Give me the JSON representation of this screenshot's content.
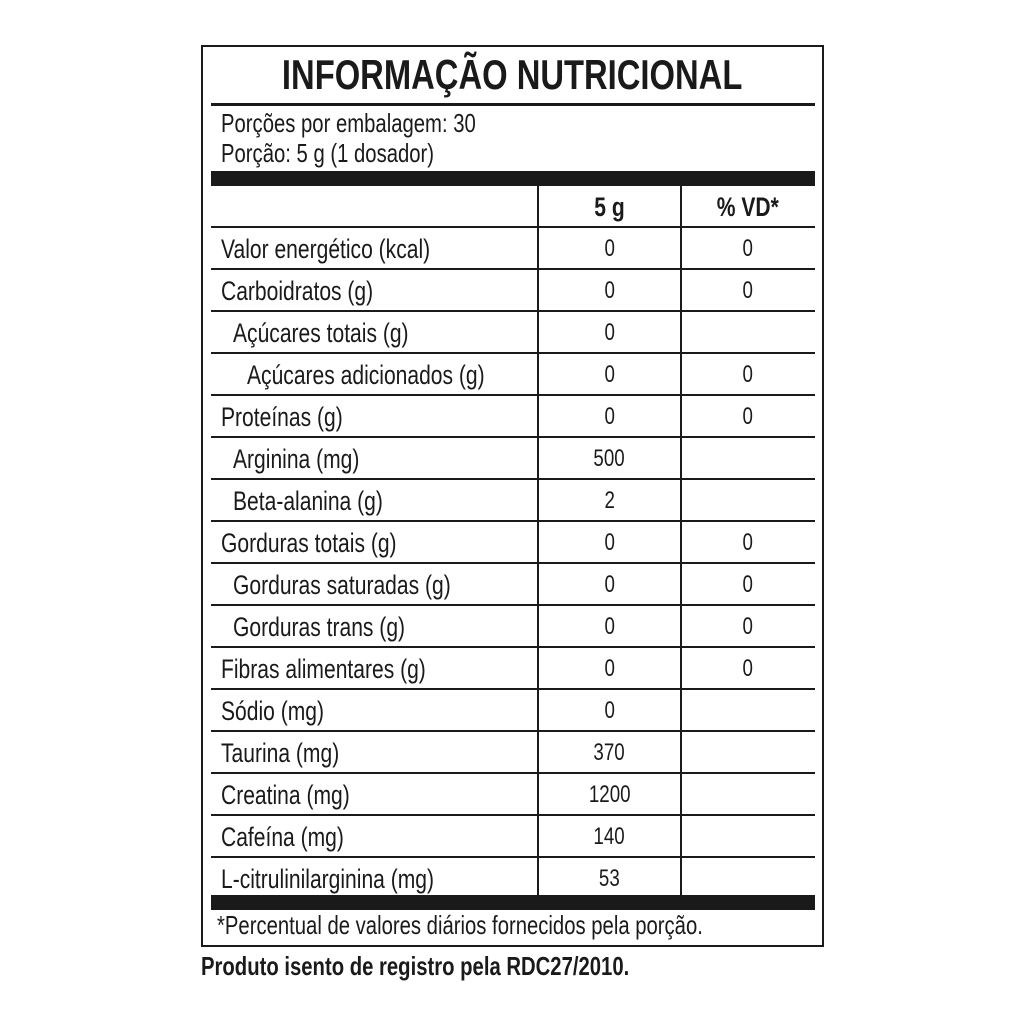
{
  "title": "INFORMAÇÃO NUTRICIONAL",
  "servings_per_package": "Porções por embalagem: 30",
  "serving_size": "Porção: 5 g (1 dosador)",
  "columns": {
    "amount": "5 g",
    "dv": "% VD*"
  },
  "rows": [
    {
      "label": "Valor energético (kcal)",
      "amount": "0",
      "dv": "0",
      "indent": 0
    },
    {
      "label": "Carboidratos (g)",
      "amount": "0",
      "dv": "0",
      "indent": 0
    },
    {
      "label": "Açúcares totais (g)",
      "amount": "0",
      "dv": "",
      "indent": 1
    },
    {
      "label": "Açúcares adicionados (g)",
      "amount": "0",
      "dv": "0",
      "indent": 2
    },
    {
      "label": "Proteínas (g)",
      "amount": "0",
      "dv": "0",
      "indent": 0
    },
    {
      "label": "Arginina (mg)",
      "amount": "500",
      "dv": "",
      "indent": 1
    },
    {
      "label": "Beta-alanina (g)",
      "amount": "2",
      "dv": "",
      "indent": 1
    },
    {
      "label": "Gorduras totais (g)",
      "amount": "0",
      "dv": "0",
      "indent": 0
    },
    {
      "label": "Gorduras saturadas (g)",
      "amount": "0",
      "dv": "0",
      "indent": 1
    },
    {
      "label": "Gorduras trans (g)",
      "amount": "0",
      "dv": "0",
      "indent": 1
    },
    {
      "label": "Fibras alimentares (g)",
      "amount": "0",
      "dv": "0",
      "indent": 0
    },
    {
      "label": "Sódio (mg)",
      "amount": "0",
      "dv": "",
      "indent": 0
    },
    {
      "label": "Taurina (mg)",
      "amount": "370",
      "dv": "",
      "indent": 0
    },
    {
      "label": "Creatina (mg)",
      "amount": "1200",
      "dv": "",
      "indent": 0
    },
    {
      "label": "Cafeína (mg)",
      "amount": "140",
      "dv": "",
      "indent": 0
    },
    {
      "label": "L-citrulinilarginina (mg)",
      "amount": "53",
      "dv": "",
      "indent": 0
    }
  ],
  "footnote": "*Percentual de valores diários fornecidos pela porção.",
  "registration_note": "Produto isento de registro pela RDC27/2010."
}
